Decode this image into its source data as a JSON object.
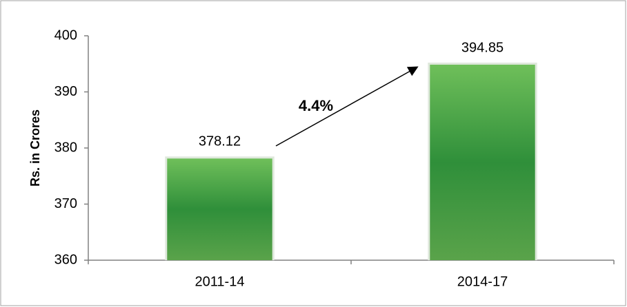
{
  "chart_data": {
    "type": "bar",
    "y_label": "Rs. in Crores",
    "annotation": "4.4%",
    "categories": [
      "2011-14",
      "2014-17"
    ],
    "values": [
      378.12,
      394.85
    ],
    "color": "#2f8f3a",
    "ylim": [
      360,
      400
    ],
    "yticks": [
      360,
      370,
      380,
      390,
      400
    ],
    "grid": false
  }
}
